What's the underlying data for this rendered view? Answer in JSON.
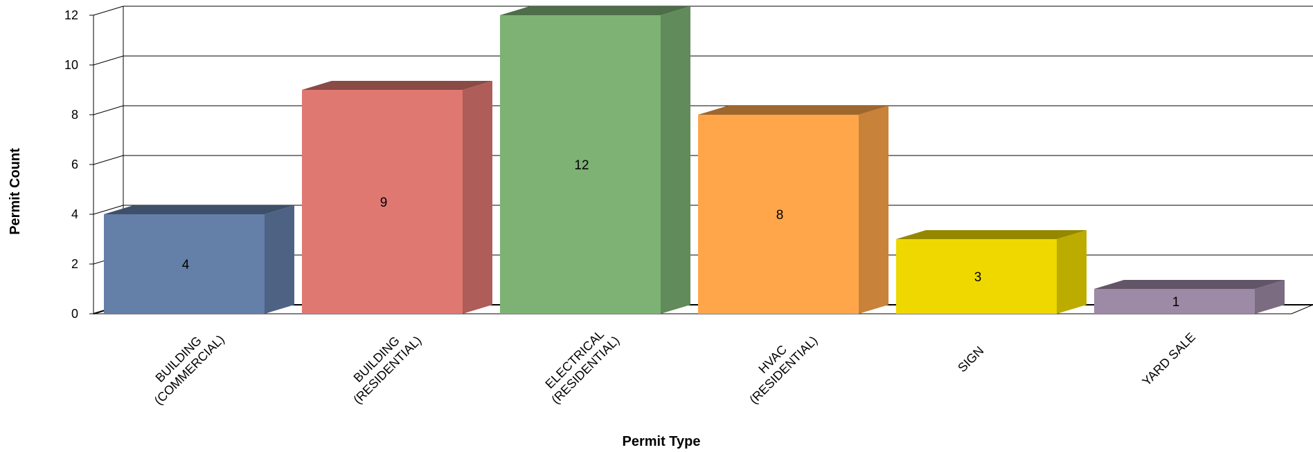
{
  "chart_data": {
    "type": "bar",
    "categories": [
      [
        "BUILDING",
        "(COMMERCIAL)"
      ],
      [
        "BUILDING",
        "(RESIDENTIAL)"
      ],
      [
        "ELECTRICAL",
        "(RESIDENTIAL)"
      ],
      [
        "HVAC",
        "(RESIDENTIAL)"
      ],
      [
        "SIGN"
      ],
      [
        "YARD SALE"
      ]
    ],
    "values": [
      4,
      9,
      12,
      8,
      3,
      1
    ],
    "data_labels": [
      "4",
      "9",
      "12",
      "8",
      "3",
      "1"
    ],
    "xlabel": "Permit Type",
    "ylabel": "Permit Count",
    "ylim": [
      0,
      12
    ],
    "yticks": [
      0,
      2,
      4,
      6,
      8,
      10,
      12
    ],
    "grid": true,
    "style": "3d-column",
    "colors": [
      {
        "front": "#647fa8",
        "side": "#4e6384",
        "top": "#3e4f69"
      },
      {
        "front": "#e07872",
        "side": "#ae5d58",
        "top": "#8a4a46"
      },
      {
        "front": "#7db274",
        "side": "#618b5a",
        "top": "#4d6e48"
      },
      {
        "front": "#ffa64a",
        "side": "#c8823a",
        "top": "#9e672e"
      },
      {
        "front": "#eed800",
        "side": "#bcac00",
        "top": "#958800"
      },
      {
        "front": "#9d8aa6",
        "side": "#7b6c82",
        "top": "#615567"
      }
    ]
  }
}
